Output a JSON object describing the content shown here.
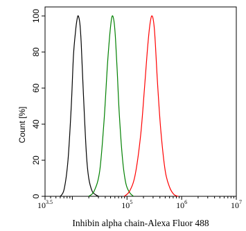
{
  "chart_data": {
    "type": "line",
    "title": "",
    "xlabel": "Inhibin alpha chain-Alexa Fluor 488",
    "ylabel": "Count [%]",
    "x_scale": "log10",
    "xlim_log10": [
      3.5,
      7
    ],
    "ylim": [
      0,
      105
    ],
    "x_ticks": [
      {
        "base": "10",
        "exp": "3.5",
        "log10": 3.5
      },
      {
        "base": "10",
        "exp": "5",
        "log10": 5
      },
      {
        "base": "10",
        "exp": "6",
        "log10": 6
      },
      {
        "base": "10",
        "exp": "7",
        "log10": 7
      }
    ],
    "y_ticks": [
      "0",
      "20",
      "40",
      "60",
      "80",
      "100"
    ],
    "grid": false,
    "legend": "none",
    "series": [
      {
        "color": "#000000",
        "x_log10": [
          3.78,
          3.85,
          3.92,
          3.98,
          4.02,
          4.06,
          4.08,
          4.1,
          4.12,
          4.14,
          4.16,
          4.18,
          4.22,
          4.26,
          4.3,
          4.36,
          4.42,
          4.48
        ],
        "values": [
          0,
          4,
          20,
          50,
          78,
          92,
          97,
          100,
          99,
          95,
          86,
          72,
          45,
          22,
          10,
          3,
          1,
          0
        ]
      },
      {
        "color": "#008000",
        "x_log10": [
          4.3,
          4.4,
          4.5,
          4.58,
          4.64,
          4.68,
          4.71,
          4.73,
          4.75,
          4.77,
          4.79,
          4.82,
          4.86,
          4.92,
          4.98,
          5.05,
          5.12
        ],
        "values": [
          0,
          3,
          14,
          42,
          72,
          88,
          97,
          100,
          99,
          95,
          87,
          70,
          45,
          20,
          7,
          2,
          0
        ]
      },
      {
        "color": "#ff0000",
        "x_log10": [
          4.95,
          5.05,
          5.15,
          5.25,
          5.32,
          5.37,
          5.41,
          5.44,
          5.46,
          5.48,
          5.5,
          5.52,
          5.56,
          5.62,
          5.7,
          5.78,
          5.86,
          5.94
        ],
        "values": [
          0,
          3,
          12,
          34,
          60,
          80,
          93,
          99,
          100,
          98,
          93,
          84,
          62,
          36,
          14,
          5,
          1,
          0
        ]
      }
    ]
  }
}
